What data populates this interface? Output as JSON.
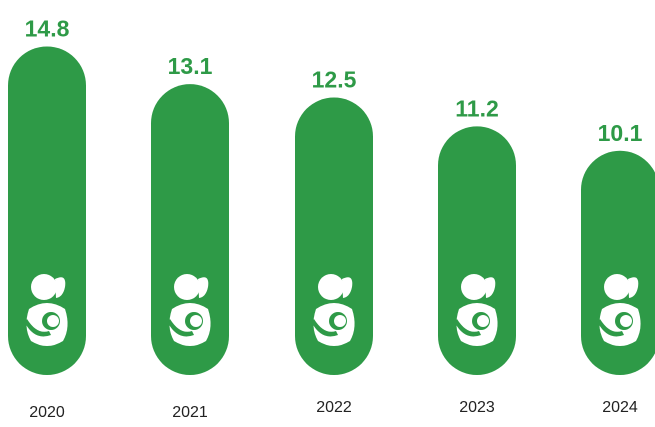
{
  "colors": {
    "bar": "#2e9a47",
    "value_text": "#2e9a47",
    "icon": "#ffffff",
    "axis_text": "#222222"
  },
  "icon_name": "breastfeeding-mother-icon",
  "chart_data": {
    "type": "bar",
    "categories": [
      "2020",
      "2021",
      "2022",
      "2023",
      "2024"
    ],
    "values": [
      14.8,
      13.1,
      12.5,
      11.2,
      10.1
    ],
    "value_labels": [
      "14.8",
      "13.1",
      "12.5",
      "11.2",
      "10.1"
    ],
    "title": "",
    "xlabel": "",
    "ylabel": "",
    "grid": false,
    "legend": "none"
  }
}
